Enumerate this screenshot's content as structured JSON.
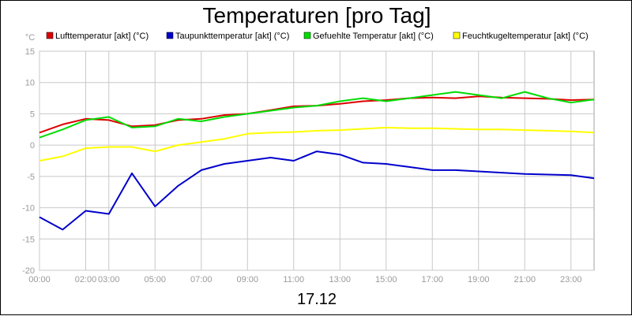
{
  "chart_data": {
    "type": "line",
    "title": "Temperaturen [pro Tag]",
    "date_label": "17.12",
    "y_unit": "°C",
    "ylim": [
      -20,
      15
    ],
    "y_ticks": [
      "15",
      "10",
      "5",
      "0",
      "-5",
      "-10",
      "-15",
      "-20"
    ],
    "y_tick_values": [
      15,
      10,
      5,
      0,
      -5,
      -10,
      -15,
      -20
    ],
    "xlim": [
      0,
      24
    ],
    "x_ticks": [
      {
        "t": 0,
        "label": "00:00"
      },
      {
        "t": 2,
        "label": "02:00"
      },
      {
        "t": 3,
        "label": "03:00"
      },
      {
        "t": 5,
        "label": "05:00"
      },
      {
        "t": 7,
        "label": "07:00"
      },
      {
        "t": 9,
        "label": "09:00"
      },
      {
        "t": 11,
        "label": "11:00"
      },
      {
        "t": 13,
        "label": "13:00"
      },
      {
        "t": 15,
        "label": "15:00"
      },
      {
        "t": 17,
        "label": "17:00"
      },
      {
        "t": 19,
        "label": "19:00"
      },
      {
        "t": 21,
        "label": "21:00"
      },
      {
        "t": 23,
        "label": "23:00"
      }
    ],
    "grid": true,
    "legend_position": "top",
    "x": [
      0,
      1,
      2,
      3,
      4,
      5,
      6,
      7,
      8,
      9,
      10,
      11,
      12,
      13,
      14,
      15,
      16,
      17,
      18,
      19,
      20,
      21,
      22,
      23,
      24
    ],
    "series": [
      {
        "name": "Lufttemperatur [akt] (°C)",
        "color": "#dd0000",
        "values": [
          2.0,
          3.3,
          4.2,
          4.0,
          3.0,
          3.2,
          4.0,
          4.2,
          4.8,
          5.0,
          5.6,
          6.2,
          6.3,
          6.6,
          7.0,
          7.2,
          7.5,
          7.6,
          7.5,
          7.8,
          7.6,
          7.5,
          7.4,
          7.2,
          7.3
        ]
      },
      {
        "name": "Taupunkttemperatur [akt] (°C)",
        "color": "#0000cc",
        "values": [
          -11.5,
          -13.5,
          -10.5,
          -11.0,
          -4.5,
          -9.8,
          -6.5,
          -4.0,
          -3.0,
          -2.5,
          -2.0,
          -2.5,
          -1.0,
          -1.5,
          -2.8,
          -3.0,
          -3.5,
          -4.0,
          -4.0,
          -4.2,
          -4.4,
          -4.6,
          -4.7,
          -4.8,
          -5.3
        ]
      },
      {
        "name": "Gefuehlte Temperatur [akt] (°C)",
        "color": "#00dd00",
        "values": [
          1.2,
          2.5,
          4.0,
          4.5,
          2.8,
          3.0,
          4.2,
          3.8,
          4.5,
          5.0,
          5.5,
          6.0,
          6.3,
          7.0,
          7.5,
          7.0,
          7.5,
          8.0,
          8.5,
          8.0,
          7.5,
          8.5,
          7.5,
          6.8,
          7.3
        ]
      },
      {
        "name": "Feuchtkugeltemperatur [akt] (°C)",
        "color": "#ffff00",
        "values": [
          -2.5,
          -1.8,
          -0.5,
          -0.3,
          -0.3,
          -1.0,
          0.0,
          0.5,
          1.0,
          1.8,
          2.0,
          2.1,
          2.3,
          2.4,
          2.6,
          2.8,
          2.7,
          2.7,
          2.6,
          2.5,
          2.5,
          2.4,
          2.3,
          2.2,
          2.0
        ]
      }
    ]
  }
}
